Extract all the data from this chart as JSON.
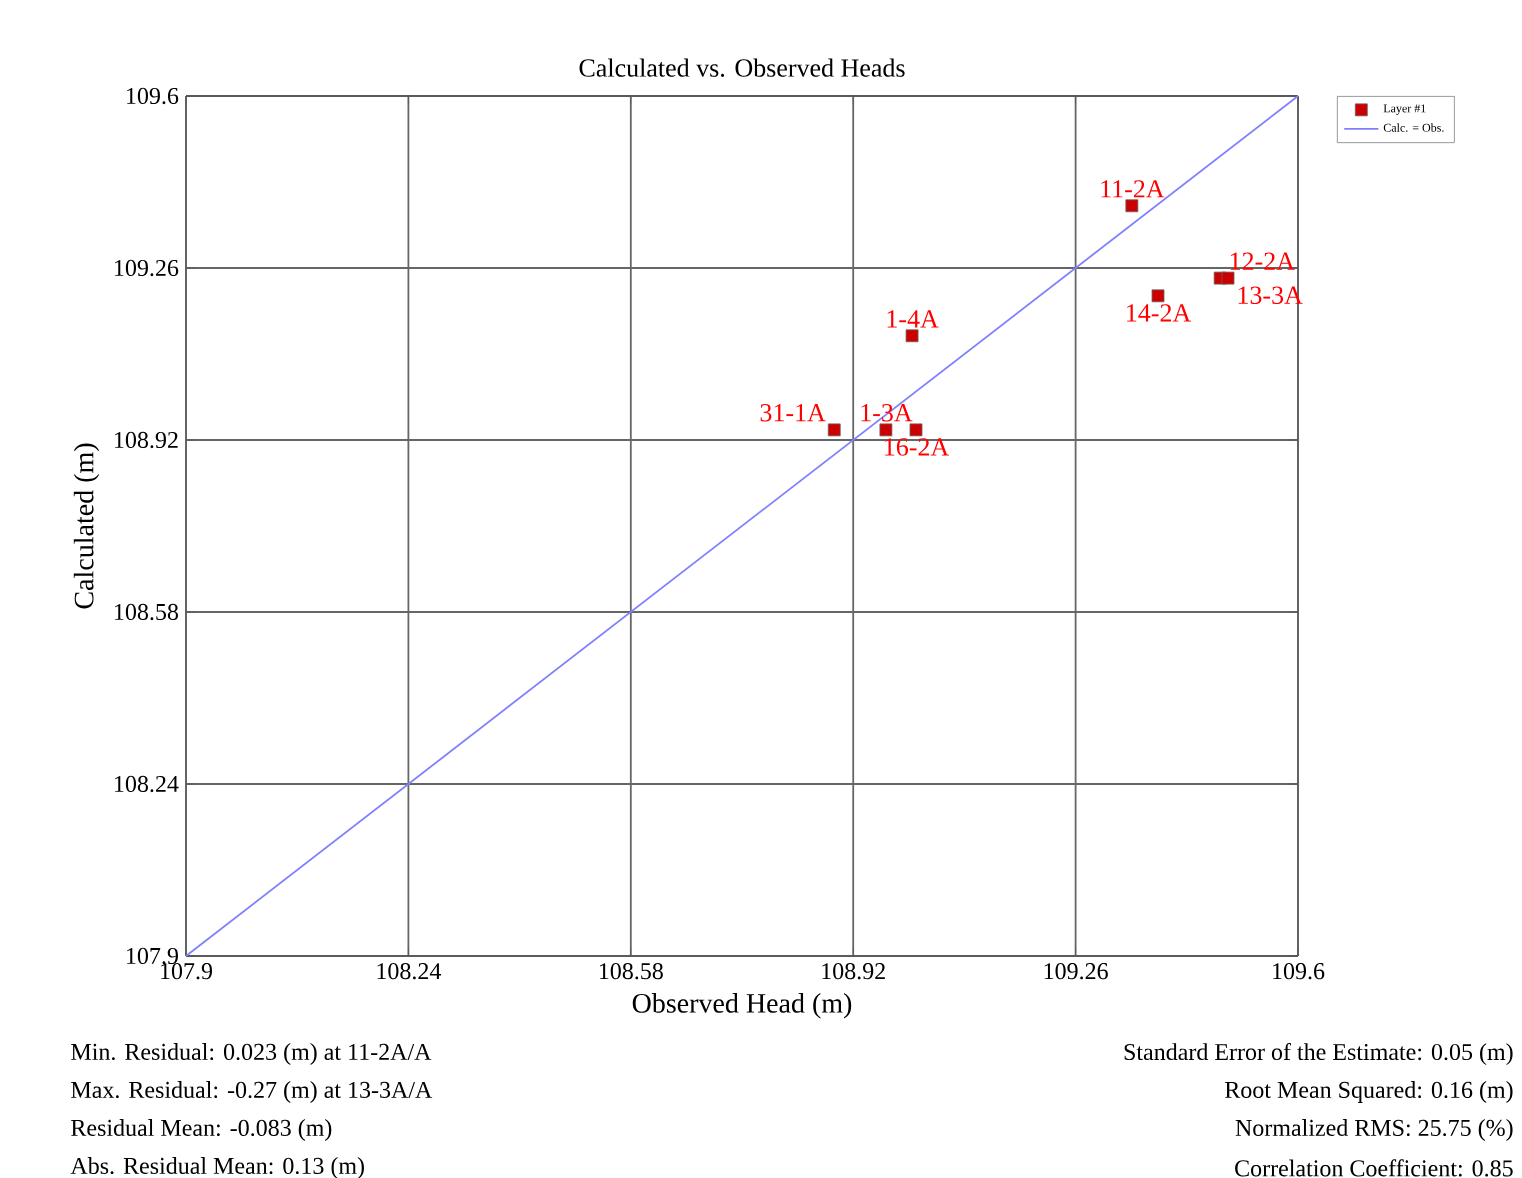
{
  "chart_data": {
    "type": "scatter",
    "title": "Calculated vs. Observed Heads",
    "xlabel": "Observed Head (m)",
    "ylabel": "Calculated (m)",
    "xlim": [
      107.9,
      109.6
    ],
    "ylim": [
      107.9,
      109.6
    ],
    "xticks": [
      107.9,
      108.24,
      108.58,
      108.92,
      109.26,
      109.6
    ],
    "yticks": [
      107.9,
      108.24,
      108.58,
      108.92,
      109.26,
      109.6
    ],
    "grid": true,
    "legend": "top right",
    "marker": "square",
    "series": [
      {
        "name": "Layer #1",
        "color": "#cc0000",
        "x": [
          109.346,
          109.481,
          109.493,
          109.386,
          109.01,
          108.891,
          108.97,
          109.016
        ],
        "values": [
          109.383,
          109.24,
          109.24,
          109.205,
          109.126,
          108.94,
          108.94,
          108.94
        ]
      },
      {
        "name": "Calc. = Obs.",
        "type": "line",
        "marker": "none",
        "color": "#8080ff",
        "x": [
          107.9,
          109.6
        ],
        "values": [
          107.9,
          109.6
        ]
      }
    ],
    "annotations": [
      {
        "text": "11-2A",
        "x": 109.346,
        "y": 109.383
      },
      {
        "text": "12-2A",
        "x": 109.481,
        "y": 109.24
      },
      {
        "text": "13-3A",
        "x": 109.493,
        "y": 109.24
      },
      {
        "text": "14-2A",
        "x": 109.386,
        "y": 109.205
      },
      {
        "text": "1-4A",
        "x": 109.01,
        "y": 109.126
      },
      {
        "text": "31-1A",
        "x": 108.891,
        "y": 108.94
      },
      {
        "text": "1-3A",
        "x": 108.97,
        "y": 108.94
      },
      {
        "text": "16-2A",
        "x": 109.016,
        "y": 108.94
      },
      "Min. Residual: 0.023 (m) at 11-2A/A",
      "Max. Residual: -0.27 (m) at 13-3A/A",
      "Residual Mean: -0.083 (m)",
      "Abs. Residual Mean: 0.13 (m)",
      "Standard Error of the Estimate: 0.05 (m)",
      "Root Mean Squared: 0.16 (m)",
      "Normalized RMS: 25.75 (%)",
      "Correlation Coefficient: 0.85"
    ]
  }
}
